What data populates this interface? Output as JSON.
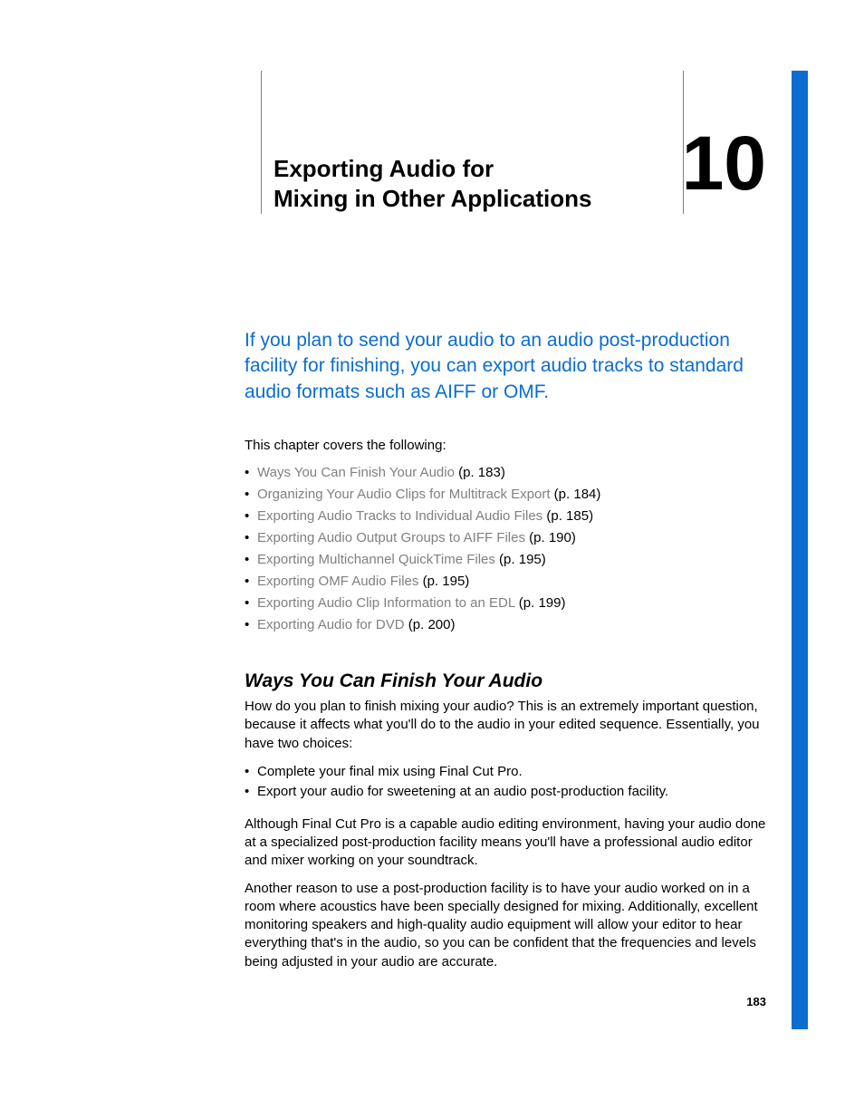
{
  "chapter": {
    "number": "10",
    "title_line1": "Exporting Audio for",
    "title_line2": "Mixing in Other Applications"
  },
  "intro": "If you plan to send your audio to an audio post-production facility for finishing, you can export audio tracks to standard audio formats such as AIFF or OMF.",
  "covers_label": "This chapter covers the following:",
  "toc": [
    {
      "title": "Ways You Can Finish Your Audio",
      "page": "183"
    },
    {
      "title": "Organizing Your Audio Clips for Multitrack Export",
      "page": "184"
    },
    {
      "title": "Exporting Audio Tracks to Individual Audio Files",
      "page": "185"
    },
    {
      "title": "Exporting Audio Output Groups to AIFF Files",
      "page": "190"
    },
    {
      "title": "Exporting Multichannel QuickTime Files",
      "page": "195"
    },
    {
      "title": "Exporting OMF Audio Files",
      "page": "195"
    },
    {
      "title": "Exporting Audio Clip Information to an EDL",
      "page": "199"
    },
    {
      "title": "Exporting Audio for DVD",
      "page": "200"
    }
  ],
  "section": {
    "heading": "Ways You Can Finish Your Audio",
    "p1": "How do you plan to finish mixing your audio? This is an extremely important question, because it affects what you'll do to the audio in your edited sequence. Essentially, you have two choices:",
    "bullets": [
      "Complete your final mix using Final Cut Pro.",
      "Export your audio for sweetening at an audio post-production facility."
    ],
    "p2": "Although Final Cut Pro is a capable audio editing environment, having your audio done at a specialized post-production facility means you'll have a professional audio editor and mixer working on your soundtrack.",
    "p3": "Another reason to use a post-production facility is to have your audio worked on in a room where acoustics have been specially designed for mixing. Additionally, excellent monitoring speakers and high-quality audio equipment will allow your editor to hear everything that's in the audio, so you can be confident that the frequencies and levels being adjusted in your audio are accurate."
  },
  "page_number": "183",
  "colors": {
    "blue": "#0b6dd0",
    "link_gray": "#808080",
    "text": "#000000",
    "bg": "#ffffff"
  }
}
